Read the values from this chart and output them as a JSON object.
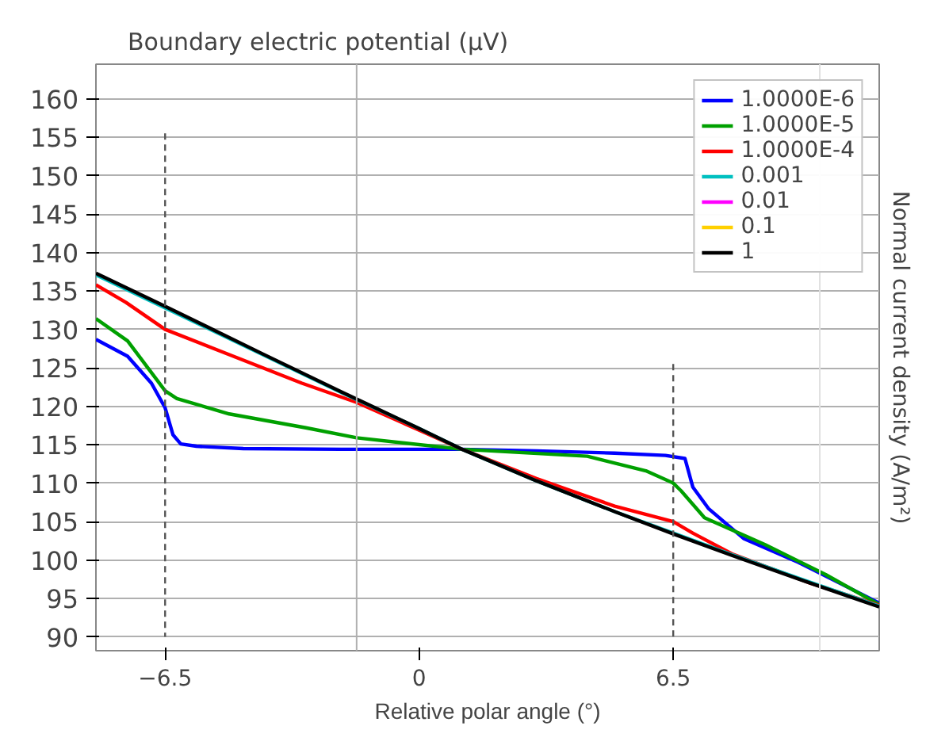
{
  "chart_data": {
    "type": "line",
    "title": "Boundary electric potential (μV)",
    "xlabel": "Relative polar angle (°)",
    "y2label": "Normal current density (A/m²)",
    "xlim": [
      -8.27,
      11.77
    ],
    "ylim": [
      88.2,
      164.5
    ],
    "xticks": [
      -6.5,
      0,
      6.5
    ],
    "yticks": [
      90,
      95,
      100,
      105,
      110,
      115,
      120,
      125,
      130,
      135,
      140,
      145,
      150,
      155,
      160
    ],
    "grid": "y",
    "legend": "top right",
    "line_style": "solid",
    "ref_lines": [
      {
        "axis": "x",
        "value": -1.6,
        "label": null,
        "color": "#b0b0b0"
      },
      {
        "axis": "x",
        "value": 10.25,
        "label": null,
        "color": "#e0e0e0"
      }
    ],
    "series": [
      {
        "name": "1.0000E-6",
        "color": "#0000ff",
        "x": [
          -8.27,
          -7.46,
          -6.85,
          -6.5,
          -6.3,
          -6.1,
          -5.7,
          -4.5,
          -2,
          0,
          1.1,
          3,
          5,
          6.3,
          6.8,
          7.0,
          7.4,
          8.3,
          9.7,
          11.77
        ],
        "values": [
          128.7,
          126.5,
          123.0,
          119.8,
          116.3,
          115.1,
          114.8,
          114.5,
          114.4,
          114.4,
          114.4,
          114.2,
          113.9,
          113.6,
          113.2,
          109.5,
          106.7,
          102.8,
          99.7,
          94.4
        ]
      },
      {
        "name": "1.0000E-5",
        "color": "#00a000",
        "x": [
          -8.27,
          -7.46,
          -6.5,
          -6.2,
          -4.86,
          -2.9,
          -1.6,
          1.1,
          4.3,
          5.8,
          6.5,
          6.7,
          7.3,
          8.85,
          10.4,
          11.77
        ],
        "values": [
          131.4,
          128.5,
          122.0,
          121.0,
          119.0,
          117.2,
          115.9,
          114.4,
          113.5,
          111.6,
          110.0,
          109.0,
          105.5,
          102.0,
          98.1,
          94.2
        ]
      },
      {
        "name": "1.0000E-4",
        "color": "#ff0000",
        "x": [
          -8.27,
          -7.5,
          -6.5,
          -5,
          -3,
          -1.6,
          0,
          1.1,
          3,
          5,
          6.5,
          7,
          8,
          10,
          11.77
        ],
        "values": [
          135.8,
          133.5,
          130.0,
          127.0,
          123.0,
          120.5,
          116.9,
          114.4,
          110.6,
          107.0,
          105.0,
          103.5,
          100.8,
          97.0,
          94.1
        ]
      },
      {
        "name": "0.001",
        "color": "#00c0c0",
        "x": [
          -8.27,
          -6.5,
          -4,
          -2,
          0,
          1.1,
          3,
          5,
          6.5,
          8,
          10,
          11.77
        ],
        "values": [
          137.1,
          132.8,
          126.7,
          121.8,
          117.1,
          114.4,
          110.3,
          106.3,
          103.5,
          100.7,
          97.1,
          94.0
        ]
      },
      {
        "name": "0.01",
        "color": "#ff00ff"
      },
      {
        "name": "0.1",
        "color": "#ffd000"
      },
      {
        "name": "1",
        "color": "#000000",
        "x": [
          -8.27,
          -6.5,
          -4,
          -2,
          0,
          1.1,
          3,
          5,
          6.5,
          8,
          10,
          11.77
        ],
        "values": [
          137.3,
          133.0,
          126.8,
          121.9,
          117.1,
          114.4,
          110.3,
          106.3,
          103.4,
          100.6,
          97.0,
          93.9
        ]
      },
      {
        "color": "#555555",
        "line_style": "dashed",
        "x": [
          -6.5,
          -6.5
        ],
        "values": [
          155.5,
          90
        ]
      },
      {
        "color": "#555555",
        "line_style": "dashed",
        "x": [
          6.5,
          6.5
        ],
        "values": [
          125.5,
          90
        ]
      }
    ]
  }
}
